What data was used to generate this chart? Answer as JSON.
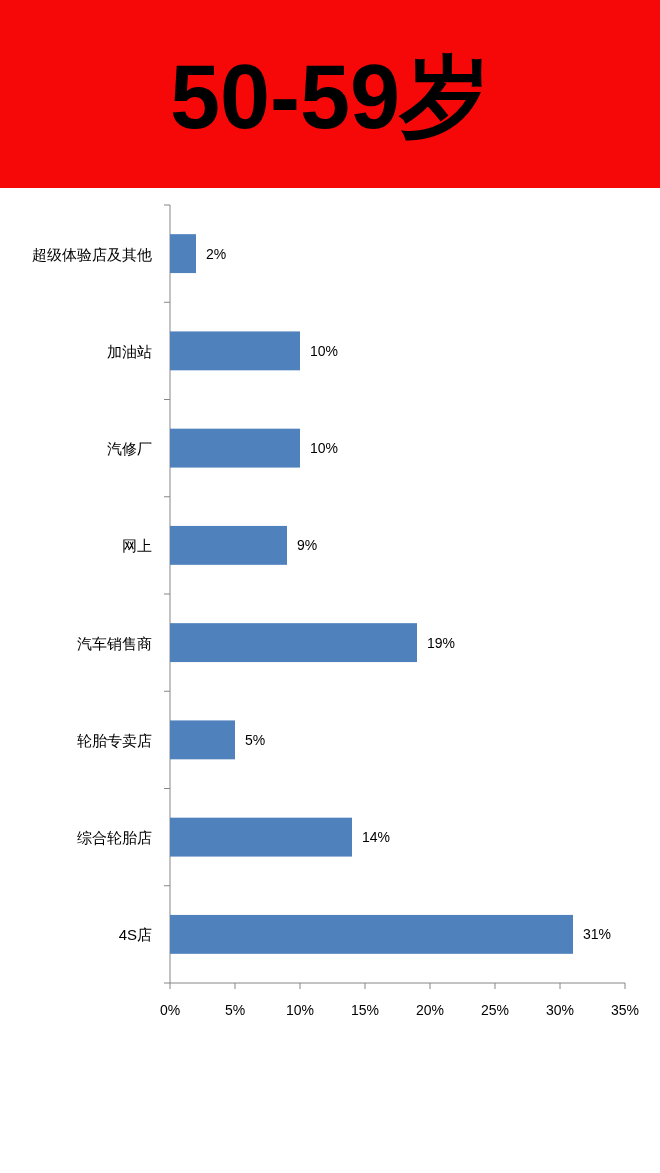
{
  "chart_data": {
    "type": "bar",
    "orientation": "horizontal",
    "title": "50-59岁",
    "categories": [
      "超级体验店及其他",
      "加油站",
      "汽修厂",
      "网上",
      "汽车销售商",
      "轮胎专卖店",
      "综合轮胎店",
      "4S店"
    ],
    "values": [
      2,
      10,
      10,
      9,
      19,
      5,
      14,
      31
    ],
    "value_labels": [
      "2%",
      "10%",
      "10%",
      "9%",
      "19%",
      "5%",
      "14%",
      "31%"
    ],
    "color": "#4f81bd",
    "xlim": [
      0,
      35
    ],
    "xticks": [
      {
        "value": 0,
        "label": "0%"
      },
      {
        "value": 5,
        "label": "5%"
      },
      {
        "value": 10,
        "label": "10%"
      },
      {
        "value": 15,
        "label": "15%"
      },
      {
        "value": 20,
        "label": "20%"
      },
      {
        "value": 25,
        "label": "25%"
      },
      {
        "value": 30,
        "label": "30%"
      },
      {
        "value": 35,
        "label": "35%"
      }
    ]
  }
}
